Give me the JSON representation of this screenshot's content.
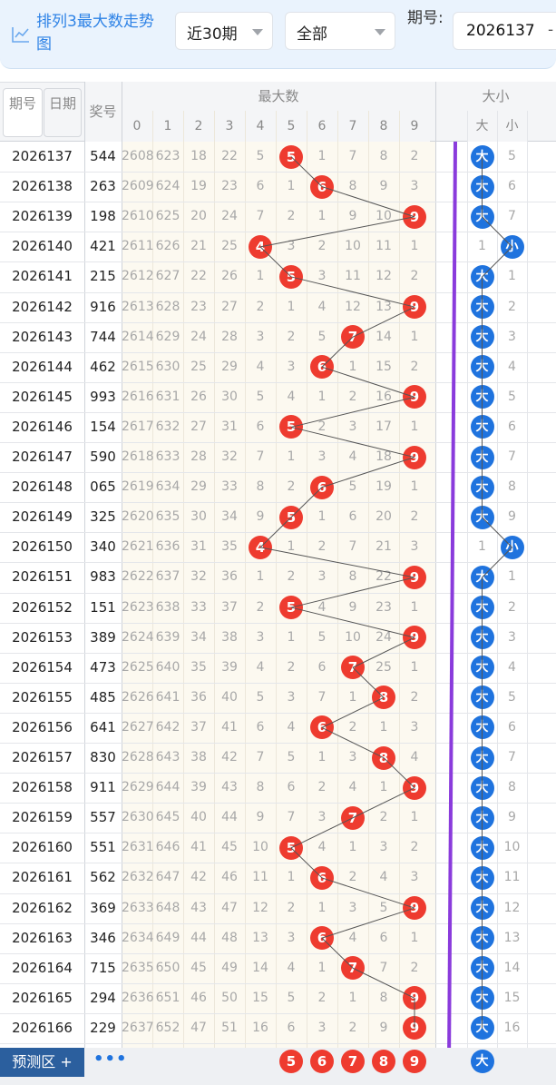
{
  "header": {
    "title": "排列3最大数走势图",
    "range_select": "近30期",
    "filter_select": "全部",
    "issue_label": "期号:",
    "issue_value": "2026137",
    "issue_suffix": "-"
  },
  "table": {
    "col_issue_a": "期号",
    "col_issue_b": "日期",
    "col_award": "奖号",
    "group_max": "最大数",
    "group_size": "大小",
    "digits": [
      "0",
      "1",
      "2",
      "3",
      "4",
      "5",
      "6",
      "7",
      "8",
      "9"
    ],
    "size_labels": [
      "大",
      "小"
    ],
    "big_label": "大",
    "small_label": "小",
    "rows": [
      {
        "issue": "2026137",
        "award": "544",
        "omit": [
          "2608",
          "623",
          "18",
          "22",
          "5",
          "",
          "1",
          "7",
          "8",
          "2"
        ],
        "max": 5,
        "big": true,
        "size_omit": "5"
      },
      {
        "issue": "2026138",
        "award": "263",
        "omit": [
          "2609",
          "624",
          "19",
          "23",
          "6",
          "1",
          "",
          "8",
          "9",
          "3"
        ],
        "max": 6,
        "big": true,
        "size_omit": "6"
      },
      {
        "issue": "2026139",
        "award": "198",
        "omit": [
          "2610",
          "625",
          "20",
          "24",
          "7",
          "2",
          "1",
          "9",
          "10",
          ""
        ],
        "max": 9,
        "big": true,
        "size_omit": "7"
      },
      {
        "issue": "2026140",
        "award": "421",
        "omit": [
          "2611",
          "626",
          "21",
          "25",
          "",
          "3",
          "2",
          "10",
          "11",
          "1"
        ],
        "max": 4,
        "big": false,
        "size_omit": "1"
      },
      {
        "issue": "2026141",
        "award": "215",
        "omit": [
          "2612",
          "627",
          "22",
          "26",
          "1",
          "",
          "3",
          "11",
          "12",
          "2"
        ],
        "max": 5,
        "big": true,
        "size_omit": "1"
      },
      {
        "issue": "2026142",
        "award": "916",
        "omit": [
          "2613",
          "628",
          "23",
          "27",
          "2",
          "1",
          "4",
          "12",
          "13",
          ""
        ],
        "max": 9,
        "big": true,
        "size_omit": "2"
      },
      {
        "issue": "2026143",
        "award": "744",
        "omit": [
          "2614",
          "629",
          "24",
          "28",
          "3",
          "2",
          "5",
          "",
          "14",
          "1"
        ],
        "max": 7,
        "big": true,
        "size_omit": "3"
      },
      {
        "issue": "2026144",
        "award": "462",
        "omit": [
          "2615",
          "630",
          "25",
          "29",
          "4",
          "3",
          "",
          "1",
          "15",
          "2"
        ],
        "max": 6,
        "big": true,
        "size_omit": "4"
      },
      {
        "issue": "2026145",
        "award": "993",
        "omit": [
          "2616",
          "631",
          "26",
          "30",
          "5",
          "4",
          "1",
          "2",
          "16",
          ""
        ],
        "max": 9,
        "big": true,
        "size_omit": "5"
      },
      {
        "issue": "2026146",
        "award": "154",
        "omit": [
          "2617",
          "632",
          "27",
          "31",
          "6",
          "",
          "2",
          "3",
          "17",
          "1"
        ],
        "max": 5,
        "big": true,
        "size_omit": "6"
      },
      {
        "issue": "2026147",
        "award": "590",
        "omit": [
          "2618",
          "633",
          "28",
          "32",
          "7",
          "1",
          "3",
          "4",
          "18",
          ""
        ],
        "max": 9,
        "big": true,
        "size_omit": "7"
      },
      {
        "issue": "2026148",
        "award": "065",
        "omit": [
          "2619",
          "634",
          "29",
          "33",
          "8",
          "2",
          "",
          "5",
          "19",
          "1"
        ],
        "max": 6,
        "big": true,
        "size_omit": "8"
      },
      {
        "issue": "2026149",
        "award": "325",
        "omit": [
          "2620",
          "635",
          "30",
          "34",
          "9",
          "",
          "1",
          "6",
          "20",
          "2"
        ],
        "max": 5,
        "big": true,
        "size_omit": "9"
      },
      {
        "issue": "2026150",
        "award": "340",
        "omit": [
          "2621",
          "636",
          "31",
          "35",
          "",
          "1",
          "2",
          "7",
          "21",
          "3"
        ],
        "max": 4,
        "big": false,
        "size_omit": "1"
      },
      {
        "issue": "2026151",
        "award": "983",
        "omit": [
          "2622",
          "637",
          "32",
          "36",
          "1",
          "2",
          "3",
          "8",
          "22",
          ""
        ],
        "max": 9,
        "big": true,
        "size_omit": "1"
      },
      {
        "issue": "2026152",
        "award": "151",
        "omit": [
          "2623",
          "638",
          "33",
          "37",
          "2",
          "",
          "4",
          "9",
          "23",
          "1"
        ],
        "max": 5,
        "big": true,
        "size_omit": "2"
      },
      {
        "issue": "2026153",
        "award": "389",
        "omit": [
          "2624",
          "639",
          "34",
          "38",
          "3",
          "1",
          "5",
          "10",
          "24",
          ""
        ],
        "max": 9,
        "big": true,
        "size_omit": "3"
      },
      {
        "issue": "2026154",
        "award": "473",
        "omit": [
          "2625",
          "640",
          "35",
          "39",
          "4",
          "2",
          "6",
          "",
          "25",
          "1"
        ],
        "max": 7,
        "big": true,
        "size_omit": "4"
      },
      {
        "issue": "2026155",
        "award": "485",
        "omit": [
          "2626",
          "641",
          "36",
          "40",
          "5",
          "3",
          "7",
          "1",
          "",
          "2"
        ],
        "max": 8,
        "big": true,
        "size_omit": "5"
      },
      {
        "issue": "2026156",
        "award": "641",
        "omit": [
          "2627",
          "642",
          "37",
          "41",
          "6",
          "4",
          "",
          "2",
          "1",
          "3"
        ],
        "max": 6,
        "big": true,
        "size_omit": "6"
      },
      {
        "issue": "2026157",
        "award": "830",
        "omit": [
          "2628",
          "643",
          "38",
          "42",
          "7",
          "5",
          "1",
          "3",
          "",
          "4"
        ],
        "max": 8,
        "big": true,
        "size_omit": "7"
      },
      {
        "issue": "2026158",
        "award": "911",
        "omit": [
          "2629",
          "644",
          "39",
          "43",
          "8",
          "6",
          "2",
          "4",
          "1",
          ""
        ],
        "max": 9,
        "big": true,
        "size_omit": "8"
      },
      {
        "issue": "2026159",
        "award": "557",
        "omit": [
          "2630",
          "645",
          "40",
          "44",
          "9",
          "7",
          "3",
          "",
          "2",
          "1"
        ],
        "max": 7,
        "big": true,
        "size_omit": "9"
      },
      {
        "issue": "2026160",
        "award": "551",
        "omit": [
          "2631",
          "646",
          "41",
          "45",
          "10",
          "",
          "4",
          "1",
          "3",
          "2"
        ],
        "max": 5,
        "big": true,
        "size_omit": "10"
      },
      {
        "issue": "2026161",
        "award": "562",
        "omit": [
          "2632",
          "647",
          "42",
          "46",
          "11",
          "1",
          "",
          "2",
          "4",
          "3"
        ],
        "max": 6,
        "big": true,
        "size_omit": "11"
      },
      {
        "issue": "2026162",
        "award": "369",
        "omit": [
          "2633",
          "648",
          "43",
          "47",
          "12",
          "2",
          "1",
          "3",
          "5",
          ""
        ],
        "max": 9,
        "big": true,
        "size_omit": "12"
      },
      {
        "issue": "2026163",
        "award": "346",
        "omit": [
          "2634",
          "649",
          "44",
          "48",
          "13",
          "3",
          "",
          "4",
          "6",
          "1"
        ],
        "max": 6,
        "big": true,
        "size_omit": "13"
      },
      {
        "issue": "2026164",
        "award": "715",
        "omit": [
          "2635",
          "650",
          "45",
          "49",
          "14",
          "4",
          "1",
          "",
          "7",
          "2"
        ],
        "max": 7,
        "big": true,
        "size_omit": "14"
      },
      {
        "issue": "2026165",
        "award": "294",
        "omit": [
          "2636",
          "651",
          "46",
          "50",
          "15",
          "5",
          "2",
          "1",
          "8",
          ""
        ],
        "max": 9,
        "big": true,
        "size_omit": "15"
      },
      {
        "issue": "2026166",
        "award": "229",
        "omit": [
          "2637",
          "652",
          "47",
          "51",
          "16",
          "6",
          "3",
          "2",
          "9",
          ""
        ],
        "max": 9,
        "big": true,
        "size_omit": "16"
      }
    ],
    "prediction": {
      "button_label": "预测区",
      "button_plus": "+",
      "more": "•••",
      "balls": [
        "5",
        "6",
        "7",
        "8",
        "9"
      ],
      "size_ball": "大"
    }
  },
  "colors": {
    "accent": "#2f83e6",
    "ball_red": "#ee3b2f",
    "ball_blue": "#1f73de",
    "line_purple": "#8a3bdc",
    "omit_bg": "#fcf9f0",
    "header_bg": "#eaf3fd"
  }
}
